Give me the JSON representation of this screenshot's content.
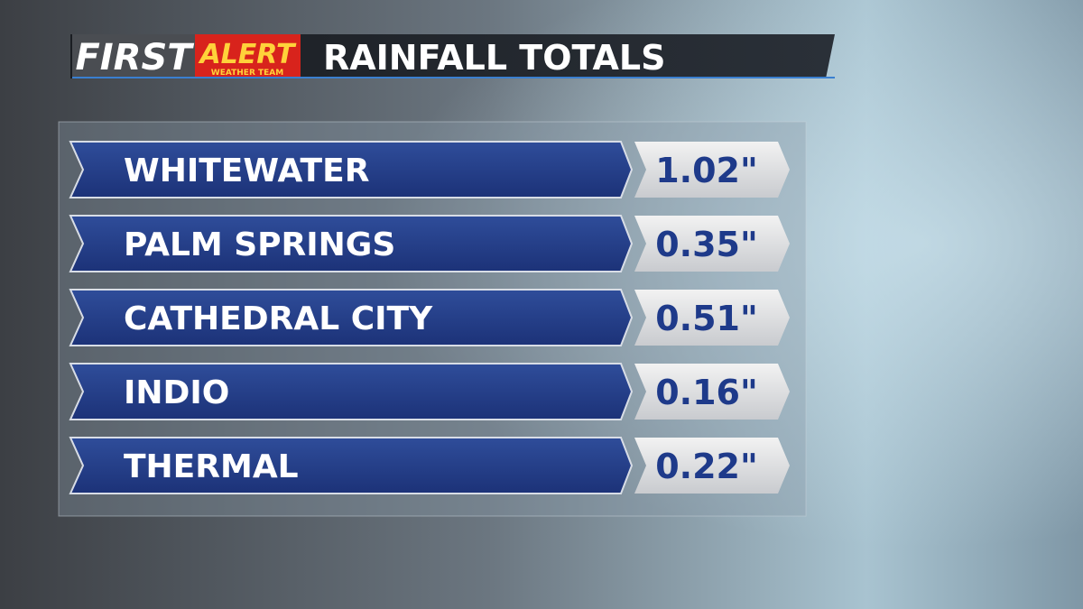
{
  "header": {
    "logo_first": "FIRST",
    "logo_alert": "ALERT",
    "logo_team": "WEATHER TEAM",
    "title": "RAINFALL TOTALS"
  },
  "table": {
    "rows": [
      [
        "WHITEWATER",
        "1.02\""
      ],
      [
        "PALM SPRINGS",
        "0.35\""
      ],
      [
        "CATHEDRAL CITY",
        "0.51\""
      ],
      [
        "INDIO",
        "0.16\""
      ],
      [
        "THERMAL",
        "0.22\""
      ]
    ]
  }
}
